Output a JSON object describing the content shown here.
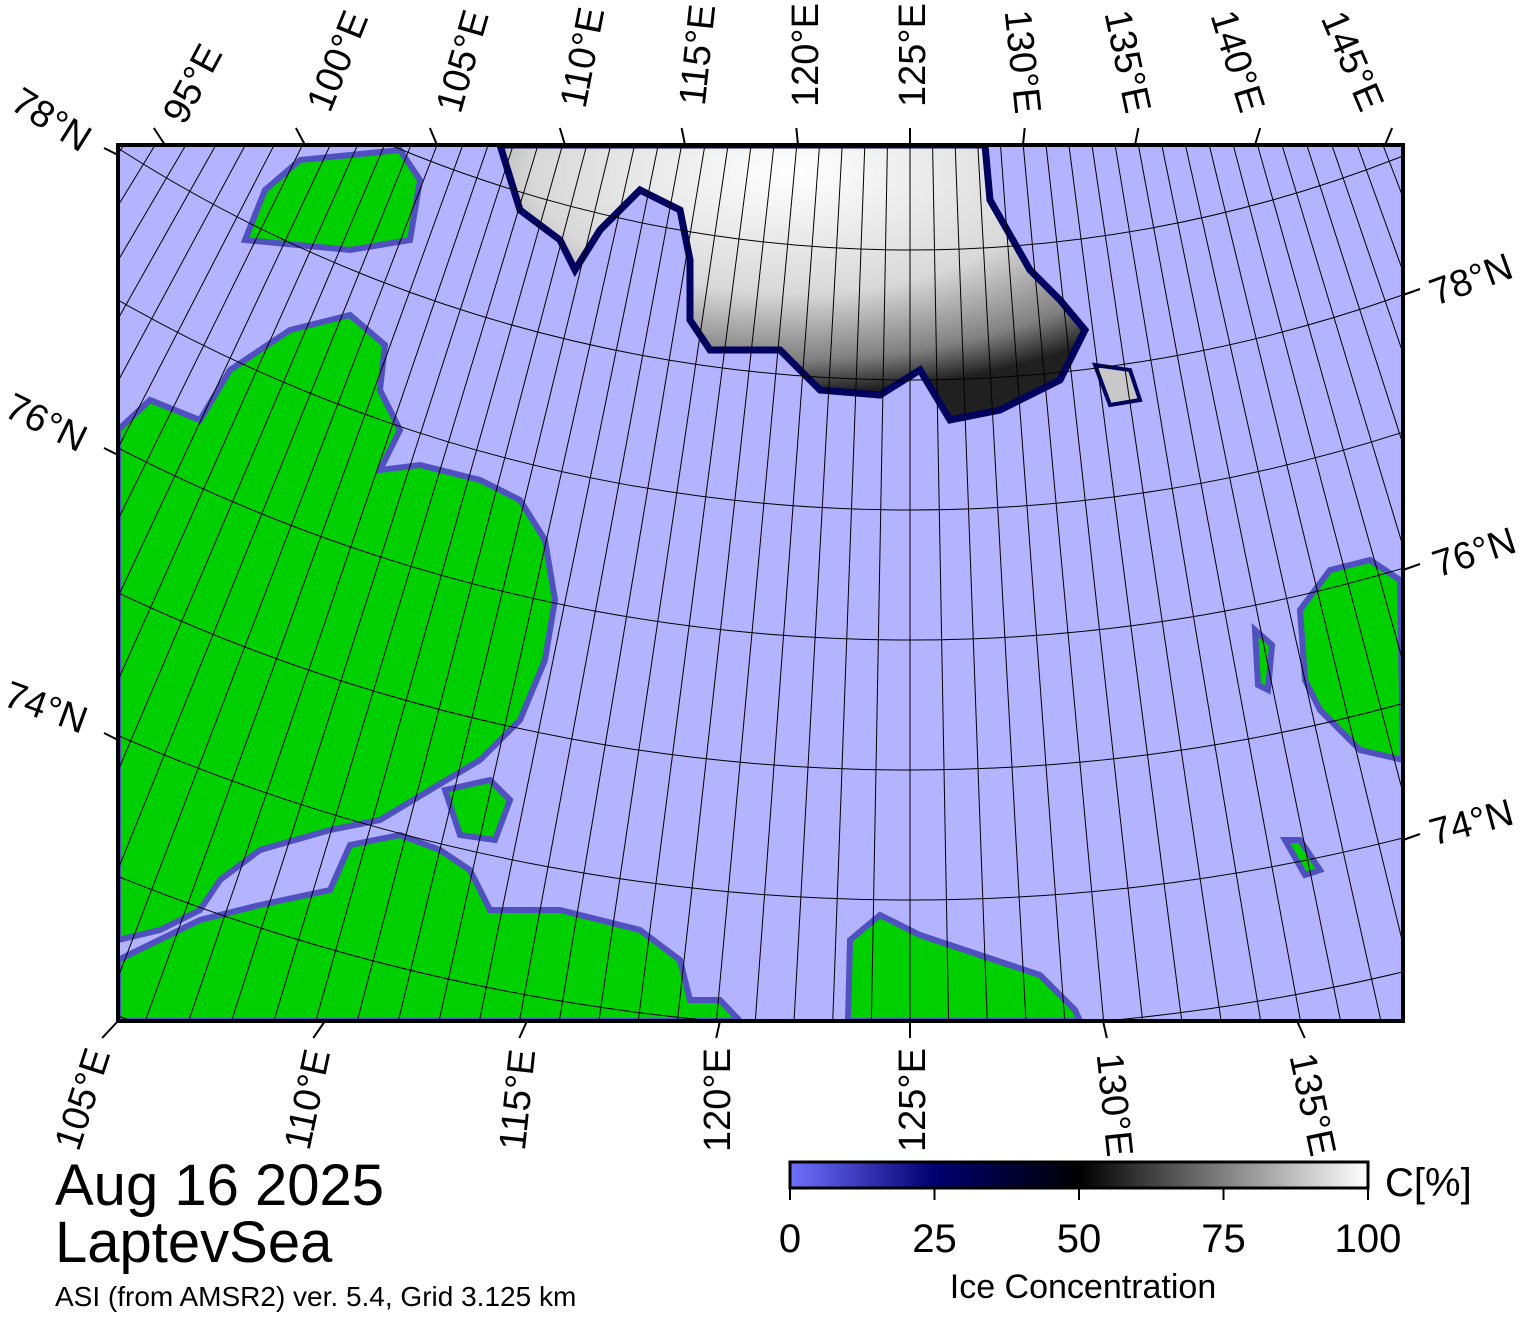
{
  "map": {
    "date": "Aug 16 2025",
    "region": "LaptevSea",
    "source": "ASI (from AMSR2) ver. 5.4,  Grid 3.125 km",
    "top_labels": [
      "95°E",
      "100°E",
      "105°E",
      "110°E",
      "115°E",
      "120°E",
      "125°E",
      "130°E",
      "135°E",
      "140°E",
      "145°E"
    ],
    "bottom_labels": [
      "105°E",
      "110°E",
      "115°E",
      "120°E",
      "125°E",
      "130°E",
      "135°E"
    ],
    "left_labels": [
      "78°N",
      "76°N",
      "74°N"
    ],
    "right_labels": [
      "78°N",
      "76°N",
      "74°N"
    ]
  },
  "colorbar": {
    "title": "Ice Concentration",
    "unit": "C[%]",
    "range": [
      0,
      100
    ],
    "ticks": [
      0,
      25,
      50,
      75,
      100
    ]
  }
}
